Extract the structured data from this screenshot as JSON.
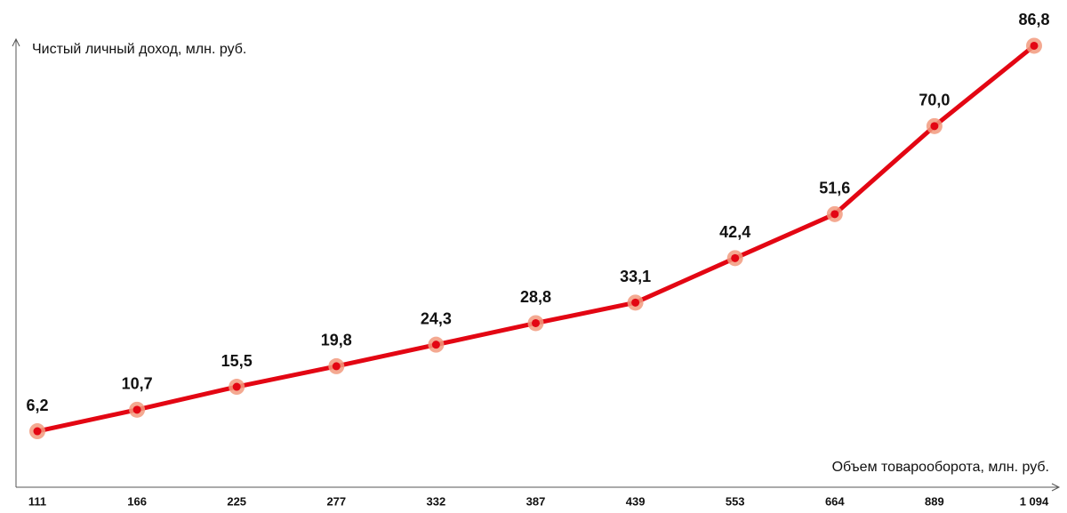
{
  "chart_data": {
    "type": "line",
    "y_label": "Чистый личный доход, млн. руб.",
    "x_label": "Объем товарооборота, млн. руб.",
    "categories": [
      "111",
      "166",
      "225",
      "277",
      "332",
      "387",
      "439",
      "553",
      "664",
      "889",
      "1 094"
    ],
    "values": [
      6.2,
      10.7,
      15.5,
      19.8,
      24.3,
      28.8,
      33.1,
      42.4,
      51.6,
      70.0,
      86.8
    ],
    "value_labels": [
      "6,2",
      "10,7",
      "15,5",
      "19,8",
      "24,3",
      "28,8",
      "33,1",
      "42,4",
      "51,6",
      "70,0",
      "86,8"
    ],
    "color": "#e30613",
    "marker_color": "#f29a7e",
    "ylim": [
      -5.5,
      88
    ]
  }
}
